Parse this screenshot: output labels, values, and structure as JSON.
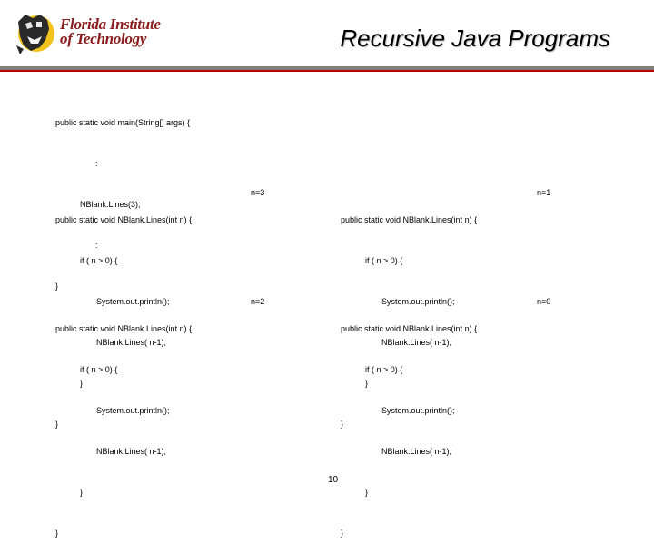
{
  "header": {
    "logo_line1": "Florida Institute",
    "logo_line2": "of Technology",
    "title": "Recursive Java Programs"
  },
  "main_block": {
    "lines": [
      "public static void main(String[] args) {",
      ":",
      "NBlank.Lines(3);",
      ":",
      "}"
    ]
  },
  "frames": [
    {
      "n_label": "n=3",
      "lines": [
        "public static void NBlank.Lines(int n) {",
        "if ( n > 0) {",
        "System.out.println();",
        "NBlank.Lines( n-1);",
        "}",
        "}"
      ]
    },
    {
      "n_label": "n=1",
      "lines": [
        "public static void NBlank.Lines(int n) {",
        "if ( n > 0) {",
        "System.out.println();",
        "NBlank.Lines( n-1);",
        "}",
        "}"
      ]
    },
    {
      "n_label": "n=2",
      "lines": [
        "public static void NBlank.Lines(int n) {",
        "if ( n > 0) {",
        "System.out.println();",
        "NBlank.Lines( n-1);",
        "}",
        "}"
      ]
    },
    {
      "n_label": "n=0",
      "lines": [
        "public static void NBlank.Lines(int n) {",
        "if ( n > 0) {",
        "System.out.println();",
        "NBlank.Lines( n-1);",
        "}",
        "}"
      ]
    }
  ],
  "footer": {
    "page_number": "10"
  }
}
